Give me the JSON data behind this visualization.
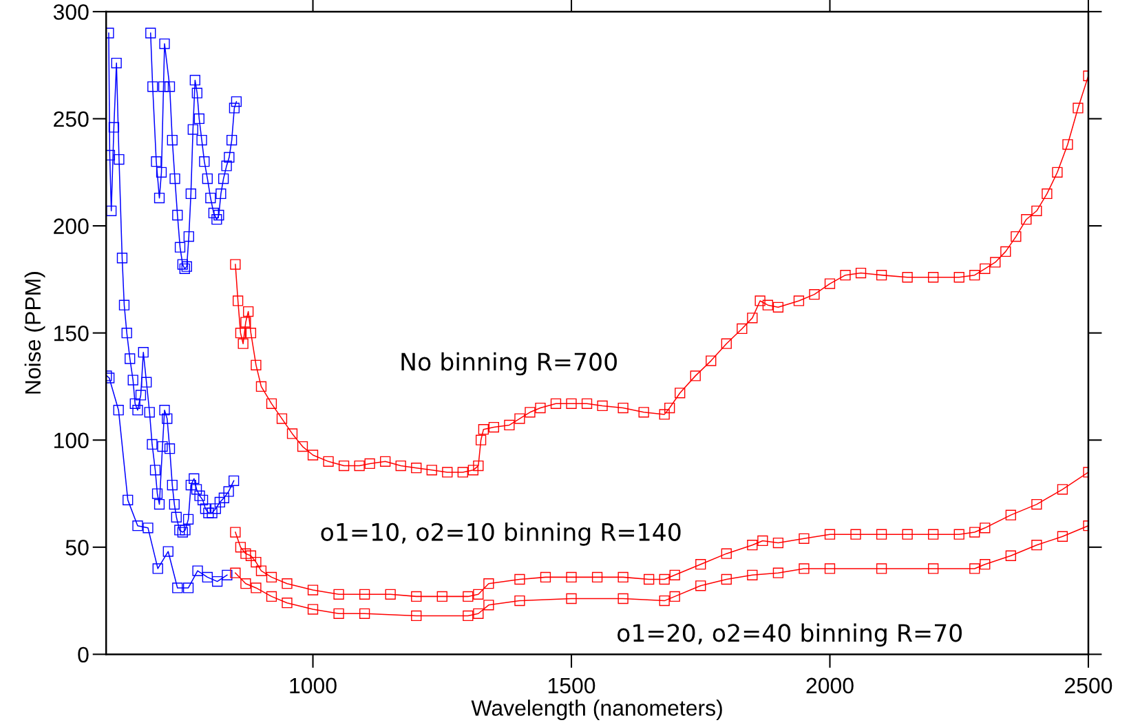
{
  "chart_data": {
    "type": "line",
    "xlabel": "Wavelength (nanometers)",
    "ylabel": "Noise (PPM)",
    "xlim": [
      600,
      2500
    ],
    "xticks": [
      1000,
      1500,
      2000,
      2500
    ],
    "ylim": [
      0,
      300
    ],
    "yticks": [
      0,
      50,
      100,
      150,
      200,
      250,
      300
    ],
    "marker": "square",
    "line_style": "solid",
    "grid": false,
    "series": [
      {
        "color": "#0000ff",
        "x": [
          686,
          690,
          697,
          703,
          707,
          711,
          713,
          723,
          728,
          733,
          738,
          743,
          748,
          752,
          756,
          760,
          764,
          768,
          772,
          776,
          780,
          785,
          790,
          796,
          802,
          808,
          814,
          818,
          822,
          827,
          833,
          838,
          843,
          848,
          852
        ],
        "values": [
          290,
          265,
          230,
          213,
          225,
          265,
          285,
          265,
          240,
          222,
          205,
          190,
          182,
          180,
          181,
          195,
          215,
          245,
          268,
          262,
          250,
          240,
          230,
          222,
          213,
          206,
          203,
          205,
          215,
          222,
          228,
          232,
          240,
          255,
          258
        ]
      },
      {
        "color": "#0000ff",
        "x": [
          605,
          607,
          610,
          615,
          620,
          625,
          631,
          635,
          640,
          646,
          652,
          656,
          661,
          667,
          672,
          678,
          684,
          689,
          695,
          699,
          703,
          709,
          713,
          718,
          723,
          728,
          732,
          736,
          742,
          748,
          753,
          759,
          764,
          770,
          775,
          781,
          787,
          792,
          798,
          805,
          812,
          820,
          828,
          837,
          847
        ],
        "values": [
          290,
          233,
          207,
          246,
          276,
          231,
          185,
          163,
          150,
          138,
          128,
          117,
          114,
          121,
          141,
          127,
          113,
          98,
          86,
          75,
          70,
          97,
          114,
          110,
          96,
          79,
          70,
          64,
          58,
          57,
          58,
          63,
          79,
          82,
          77,
          74,
          72,
          68,
          66,
          66,
          68,
          71,
          73,
          76,
          81
        ]
      },
      {
        "color": "#0000ff",
        "x": [
          601,
          606,
          624,
          642,
          661,
          681,
          700,
          720,
          738,
          759,
          777,
          796,
          815,
          834
        ],
        "values": [
          130,
          129,
          114,
          72,
          60,
          59,
          40,
          48,
          31,
          31,
          39,
          36,
          34,
          37
        ]
      },
      {
        "color": "#ff0000",
        "x": [
          850,
          855,
          860,
          865,
          870,
          875,
          880,
          890,
          900,
          920,
          940,
          960,
          980,
          1000,
          1030,
          1060,
          1090,
          1110,
          1140,
          1170,
          1200,
          1230,
          1260,
          1290,
          1310,
          1320,
          1325,
          1330,
          1350,
          1380,
          1400,
          1420,
          1440,
          1470,
          1500,
          1530,
          1560,
          1600,
          1640,
          1680,
          1690,
          1710,
          1740,
          1770,
          1800,
          1830,
          1850,
          1865,
          1880,
          1900,
          1940,
          1970,
          2000,
          2030,
          2060,
          2100,
          2150,
          2200,
          2250,
          2280,
          2300,
          2320,
          2340,
          2360,
          2380,
          2400,
          2420,
          2440,
          2460,
          2480,
          2500
        ],
        "values": [
          182,
          165,
          150,
          145,
          155,
          160,
          150,
          135,
          125,
          117,
          110,
          103,
          97,
          93,
          90,
          88,
          88,
          89,
          90,
          88,
          87,
          86,
          85,
          85,
          86,
          88,
          100,
          105,
          106,
          107,
          110,
          113,
          115,
          117,
          117,
          117,
          116,
          115,
          113,
          112,
          115,
          122,
          130,
          137,
          145,
          152,
          157,
          165,
          163,
          162,
          165,
          168,
          173,
          177,
          178,
          177,
          176,
          176,
          176,
          177,
          180,
          183,
          188,
          195,
          203,
          207,
          215,
          225,
          238,
          255,
          270
        ]
      },
      {
        "color": "#ff0000",
        "x": [
          850,
          860,
          870,
          880,
          890,
          900,
          920,
          950,
          1000,
          1050,
          1100,
          1150,
          1200,
          1250,
          1300,
          1320,
          1340,
          1400,
          1450,
          1500,
          1550,
          1600,
          1650,
          1680,
          1700,
          1750,
          1800,
          1850,
          1870,
          1900,
          1950,
          2000,
          2050,
          2100,
          2150,
          2200,
          2250,
          2280,
          2300,
          2350,
          2400,
          2450,
          2500
        ],
        "values": [
          57,
          50,
          47,
          46,
          43,
          39,
          36,
          33,
          30,
          28,
          28,
          28,
          27,
          27,
          27,
          28,
          33,
          35,
          36,
          36,
          36,
          36,
          35,
          35,
          37,
          42,
          47,
          51,
          53,
          52,
          54,
          56,
          56,
          56,
          56,
          56,
          56,
          57,
          59,
          65,
          70,
          77,
          85
        ]
      },
      {
        "color": "#ff0000",
        "x": [
          850,
          870,
          890,
          920,
          950,
          1000,
          1050,
          1100,
          1200,
          1300,
          1320,
          1340,
          1400,
          1500,
          1600,
          1680,
          1700,
          1750,
          1800,
          1850,
          1900,
          1950,
          2000,
          2100,
          2200,
          2280,
          2300,
          2350,
          2400,
          2450,
          2500
        ],
        "values": [
          38,
          33,
          31,
          27,
          24,
          21,
          19,
          19,
          18,
          18,
          19,
          23,
          25,
          26,
          26,
          25,
          27,
          32,
          35,
          37,
          38,
          40,
          40,
          40,
          40,
          40,
          42,
          46,
          51,
          55,
          60
        ]
      }
    ],
    "annotations": [
      "No binning R=700",
      "o1=10, o2=10 binning R=140",
      "o1=20, o2=40 binning R=70"
    ]
  }
}
